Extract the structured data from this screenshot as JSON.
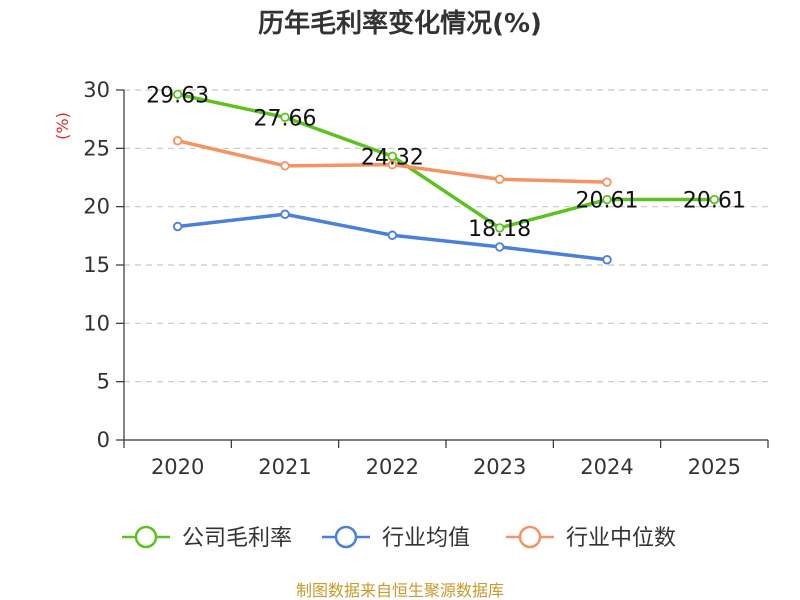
{
  "chart_data": {
    "type": "line",
    "title": "历年毛利率变化情况(%)",
    "ylabel": "(%)",
    "xlabel": "",
    "categories": [
      "2020",
      "2021",
      "2022",
      "2023",
      "2024",
      "2025"
    ],
    "ylim": [
      0,
      30
    ],
    "yticks": [
      "0",
      "5",
      "10",
      "15",
      "20",
      "25",
      "30"
    ],
    "grid": true,
    "legend_position": "bottom",
    "series": [
      {
        "name": "公司毛利率",
        "color": "#5cc220",
        "values": [
          29.63,
          27.66,
          24.32,
          18.18,
          20.61,
          20.61
        ],
        "labels": [
          "29.63",
          "27.66",
          "24.32",
          "18.18",
          "20.61",
          "20.61"
        ]
      },
      {
        "name": "行业均值",
        "color": "#4a7fdc",
        "values": [
          18.3,
          19.35,
          17.55,
          16.55,
          15.45,
          null
        ]
      },
      {
        "name": "行业中位数",
        "color": "#f49363",
        "values": [
          25.65,
          23.5,
          23.6,
          22.35,
          22.1,
          null
        ]
      }
    ],
    "source": "制图数据来自恒生聚源数据库"
  }
}
